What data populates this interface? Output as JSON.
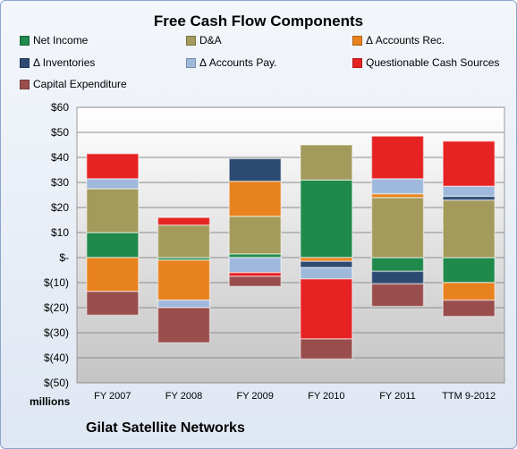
{
  "title": "Free Cash Flow Components",
  "footer": "Gilat Satellite Networks",
  "units": "millions",
  "colors": {
    "Net Income": "#1f8a4c",
    "D&A": "#a39a5c",
    "Δ Accounts Rec.": "#e8821e",
    "Δ Inventories": "#2c4a72",
    "Δ Accounts Pay.": "#9fb9dc",
    "Questionable Cash Sources": "#e62222",
    "Capital Expenditure": "#9a4d4d"
  },
  "chart_data": {
    "type": "bar",
    "stacked": true,
    "title": "Free Cash Flow Components",
    "ylabel": "millions",
    "ylim": [
      -50,
      60
    ],
    "yticks": [
      "$60",
      "$50",
      "$40",
      "$30",
      "$20",
      "$10",
      "$-",
      "$(10)",
      "$(20)",
      "$(30)",
      "$(40)",
      "$(50)"
    ],
    "categories": [
      "FY 2007",
      "FY 2008",
      "FY 2009",
      "FY 2010",
      "FY 2011",
      "TTM 9-2012"
    ],
    "legend_position": "top",
    "series": [
      {
        "name": "Net Income",
        "values": [
          10,
          -1,
          1.5,
          31,
          -5.5,
          -10
        ]
      },
      {
        "name": "D&A",
        "values": [
          17.5,
          13,
          15,
          14,
          24,
          23
        ]
      },
      {
        "name": "Δ Accounts Rec.",
        "values": [
          -13.5,
          -16,
          14,
          -1.5,
          1.5,
          -7
        ]
      },
      {
        "name": "Δ Inventories",
        "values": [
          0,
          0,
          9,
          -2.5,
          -5,
          1.5
        ]
      },
      {
        "name": "Δ Accounts Pay.",
        "values": [
          4,
          -3,
          -6,
          -4.5,
          6,
          4
        ]
      },
      {
        "name": "Questionable Cash Sources",
        "values": [
          10,
          3,
          -1.5,
          -24,
          17,
          18
        ]
      },
      {
        "name": "Capital Expenditure",
        "values": [
          -9.5,
          -14,
          -4,
          -8,
          -9,
          -6.5
        ]
      }
    ]
  }
}
